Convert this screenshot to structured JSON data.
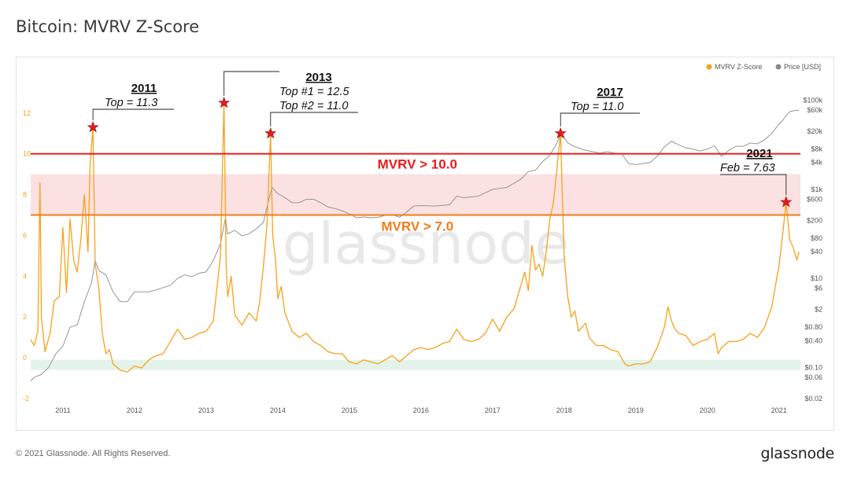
{
  "page": {
    "title": "Bitcoin: MVRV Z-Score",
    "footer_copyright": "© 2021 Glassnode. All Rights Reserved.",
    "footer_logo": "glassnode",
    "watermark": "glassnode"
  },
  "legend": [
    {
      "label": "MVRV Z-Score",
      "color": "#f7a21b"
    },
    {
      "label": "Price [USD]",
      "color": "#8a8a8a"
    }
  ],
  "colors": {
    "zscore": "#f7a21b",
    "price": "#8a8a8a",
    "red_band": "#fbe1e1",
    "green_band": "#e3f3ea",
    "red_line": "#e41e1e",
    "orange_line": "#f07d1a",
    "star": "#e41e1e"
  },
  "chart_data": {
    "type": "line",
    "title": "Bitcoin: MVRV Z-Score",
    "x_ticks": [
      "2011",
      "2012",
      "2013",
      "2014",
      "2015",
      "2016",
      "2017",
      "2018",
      "2019",
      "2020",
      "2021"
    ],
    "x_range": [
      2010.55,
      2021.3
    ],
    "left_axis": {
      "ticks": [
        "-2",
        "0",
        "2",
        "4",
        "6",
        "8",
        "10",
        "12"
      ],
      "tick_values": [
        -2,
        0,
        2,
        4,
        6,
        8,
        10,
        12
      ],
      "range": [
        -2,
        12.8
      ]
    },
    "right_axis": {
      "scale": "log",
      "ticks": [
        "$0.02",
        "$0.06",
        "$0.10",
        "$0.40",
        "$0.80",
        "$2",
        "$6",
        "$10",
        "$40",
        "$80",
        "$200",
        "$600",
        "$1k",
        "$4k",
        "$8k",
        "$20k",
        "$60k",
        "$100k"
      ],
      "tick_values": [
        0.02,
        0.06,
        0.1,
        0.4,
        0.8,
        2,
        6,
        10,
        40,
        80,
        200,
        600,
        1000,
        4000,
        8000,
        20000,
        60000,
        100000
      ],
      "range": [
        0.02,
        120000
      ]
    },
    "series": [
      {
        "name": "MVRV Z-Score",
        "points": [
          [
            2010.55,
            0.9
          ],
          [
            2010.6,
            0.6
          ],
          [
            2010.65,
            1.3
          ],
          [
            2010.68,
            8.6
          ],
          [
            2010.7,
            2.0
          ],
          [
            2010.75,
            0.3
          ],
          [
            2010.82,
            1.2
          ],
          [
            2010.88,
            2.8
          ],
          [
            2010.95,
            3.0
          ],
          [
            2011.0,
            6.4
          ],
          [
            2011.05,
            3.2
          ],
          [
            2011.1,
            6.8
          ],
          [
            2011.15,
            4.8
          ],
          [
            2011.2,
            4.2
          ],
          [
            2011.25,
            5.8
          ],
          [
            2011.3,
            8.0
          ],
          [
            2011.35,
            5.2
          ],
          [
            2011.38,
            9.5
          ],
          [
            2011.42,
            11.3
          ],
          [
            2011.45,
            4.6
          ],
          [
            2011.5,
            3.5
          ],
          [
            2011.55,
            1.2
          ],
          [
            2011.6,
            0.2
          ],
          [
            2011.65,
            0.4
          ],
          [
            2011.7,
            -0.3
          ],
          [
            2011.8,
            -0.6
          ],
          [
            2011.9,
            -0.7
          ],
          [
            2012.0,
            -0.4
          ],
          [
            2012.1,
            -0.5
          ],
          [
            2012.2,
            -0.1
          ],
          [
            2012.3,
            0.1
          ],
          [
            2012.4,
            0.2
          ],
          [
            2012.5,
            0.8
          ],
          [
            2012.6,
            1.4
          ],
          [
            2012.7,
            0.9
          ],
          [
            2012.8,
            1.0
          ],
          [
            2012.9,
            1.2
          ],
          [
            2013.0,
            1.3
          ],
          [
            2013.1,
            1.8
          ],
          [
            2013.2,
            5.0
          ],
          [
            2013.25,
            12.5
          ],
          [
            2013.28,
            4.5
          ],
          [
            2013.3,
            3.0
          ],
          [
            2013.35,
            4.0
          ],
          [
            2013.4,
            2.1
          ],
          [
            2013.5,
            1.6
          ],
          [
            2013.6,
            2.2
          ],
          [
            2013.7,
            1.8
          ],
          [
            2013.75,
            2.8
          ],
          [
            2013.8,
            4.5
          ],
          [
            2013.85,
            6.5
          ],
          [
            2013.9,
            11.0
          ],
          [
            2013.93,
            6.0
          ],
          [
            2013.97,
            4.8
          ],
          [
            2014.0,
            2.9
          ],
          [
            2014.05,
            3.5
          ],
          [
            2014.1,
            2.2
          ],
          [
            2014.2,
            1.3
          ],
          [
            2014.3,
            1.0
          ],
          [
            2014.4,
            1.2
          ],
          [
            2014.5,
            0.8
          ],
          [
            2014.6,
            0.6
          ],
          [
            2014.7,
            0.3
          ],
          [
            2014.8,
            0.2
          ],
          [
            2014.9,
            0.2
          ],
          [
            2015.0,
            -0.2
          ],
          [
            2015.1,
            -0.3
          ],
          [
            2015.2,
            -0.1
          ],
          [
            2015.3,
            -0.2
          ],
          [
            2015.4,
            -0.3
          ],
          [
            2015.5,
            -0.1
          ],
          [
            2015.6,
            0.1
          ],
          [
            2015.7,
            -0.2
          ],
          [
            2015.8,
            0.1
          ],
          [
            2015.9,
            0.4
          ],
          [
            2016.0,
            0.5
          ],
          [
            2016.1,
            0.4
          ],
          [
            2016.2,
            0.5
          ],
          [
            2016.3,
            0.7
          ],
          [
            2016.4,
            0.8
          ],
          [
            2016.5,
            1.4
          ],
          [
            2016.6,
            0.9
          ],
          [
            2016.7,
            0.8
          ],
          [
            2016.8,
            0.9
          ],
          [
            2016.9,
            1.2
          ],
          [
            2017.0,
            1.9
          ],
          [
            2017.1,
            1.3
          ],
          [
            2017.2,
            2.0
          ],
          [
            2017.3,
            2.4
          ],
          [
            2017.4,
            3.6
          ],
          [
            2017.45,
            4.2
          ],
          [
            2017.5,
            3.3
          ],
          [
            2017.55,
            5.5
          ],
          [
            2017.6,
            4.3
          ],
          [
            2017.65,
            4.6
          ],
          [
            2017.7,
            4.0
          ],
          [
            2017.75,
            5.2
          ],
          [
            2017.8,
            6.8
          ],
          [
            2017.85,
            7.6
          ],
          [
            2017.9,
            9.3
          ],
          [
            2017.95,
            11.0
          ],
          [
            2018.0,
            5.0
          ],
          [
            2018.05,
            3.0
          ],
          [
            2018.1,
            2.0
          ],
          [
            2018.15,
            2.3
          ],
          [
            2018.2,
            1.3
          ],
          [
            2018.3,
            1.7
          ],
          [
            2018.35,
            1.0
          ],
          [
            2018.45,
            0.6
          ],
          [
            2018.55,
            0.6
          ],
          [
            2018.65,
            0.4
          ],
          [
            2018.75,
            0.3
          ],
          [
            2018.85,
            -0.3
          ],
          [
            2018.9,
            -0.4
          ],
          [
            2019.0,
            -0.3
          ],
          [
            2019.1,
            -0.3
          ],
          [
            2019.2,
            -0.2
          ],
          [
            2019.3,
            0.5
          ],
          [
            2019.4,
            1.5
          ],
          [
            2019.45,
            2.5
          ],
          [
            2019.5,
            1.8
          ],
          [
            2019.55,
            1.4
          ],
          [
            2019.6,
            1.2
          ],
          [
            2019.7,
            1.1
          ],
          [
            2019.8,
            0.6
          ],
          [
            2019.9,
            0.8
          ],
          [
            2020.0,
            0.9
          ],
          [
            2020.1,
            1.2
          ],
          [
            2020.15,
            0.2
          ],
          [
            2020.2,
            0.5
          ],
          [
            2020.3,
            0.8
          ],
          [
            2020.4,
            0.8
          ],
          [
            2020.5,
            0.9
          ],
          [
            2020.6,
            1.2
          ],
          [
            2020.7,
            1.0
          ],
          [
            2020.8,
            1.5
          ],
          [
            2020.9,
            2.5
          ],
          [
            2021.0,
            4.5
          ],
          [
            2021.05,
            6.0
          ],
          [
            2021.1,
            7.63
          ],
          [
            2021.15,
            5.8
          ],
          [
            2021.2,
            5.4
          ],
          [
            2021.25,
            4.8
          ],
          [
            2021.28,
            5.2
          ]
        ]
      },
      {
        "name": "Price [USD]",
        "points": [
          [
            2010.55,
            0.05
          ],
          [
            2010.6,
            0.06
          ],
          [
            2010.7,
            0.07
          ],
          [
            2010.8,
            0.1
          ],
          [
            2010.9,
            0.2
          ],
          [
            2011.0,
            0.3
          ],
          [
            2011.1,
            0.8
          ],
          [
            2011.2,
            0.9
          ],
          [
            2011.3,
            3
          ],
          [
            2011.4,
            8
          ],
          [
            2011.45,
            25
          ],
          [
            2011.5,
            15
          ],
          [
            2011.6,
            12
          ],
          [
            2011.7,
            5
          ],
          [
            2011.8,
            3
          ],
          [
            2011.9,
            3
          ],
          [
            2012.0,
            5
          ],
          [
            2012.1,
            5
          ],
          [
            2012.2,
            5
          ],
          [
            2012.3,
            5.5
          ],
          [
            2012.5,
            7
          ],
          [
            2012.6,
            10
          ],
          [
            2012.7,
            12
          ],
          [
            2012.8,
            11
          ],
          [
            2012.9,
            13
          ],
          [
            2013.0,
            14
          ],
          [
            2013.1,
            25
          ],
          [
            2013.2,
            60
          ],
          [
            2013.27,
            230
          ],
          [
            2013.3,
            100
          ],
          [
            2013.4,
            120
          ],
          [
            2013.5,
            90
          ],
          [
            2013.6,
            100
          ],
          [
            2013.7,
            130
          ],
          [
            2013.8,
            180
          ],
          [
            2013.85,
            400
          ],
          [
            2013.92,
            1100
          ],
          [
            2014.0,
            800
          ],
          [
            2014.1,
            650
          ],
          [
            2014.2,
            500
          ],
          [
            2014.3,
            500
          ],
          [
            2014.4,
            600
          ],
          [
            2014.5,
            600
          ],
          [
            2014.6,
            500
          ],
          [
            2014.7,
            400
          ],
          [
            2014.8,
            370
          ],
          [
            2014.9,
            330
          ],
          [
            2015.0,
            280
          ],
          [
            2015.1,
            230
          ],
          [
            2015.2,
            240
          ],
          [
            2015.3,
            230
          ],
          [
            2015.4,
            235
          ],
          [
            2015.5,
            260
          ],
          [
            2015.6,
            270
          ],
          [
            2015.7,
            235
          ],
          [
            2015.8,
            310
          ],
          [
            2015.9,
            420
          ],
          [
            2016.0,
            430
          ],
          [
            2016.2,
            420
          ],
          [
            2016.4,
            450
          ],
          [
            2016.5,
            700
          ],
          [
            2016.6,
            650
          ],
          [
            2016.8,
            700
          ],
          [
            2017.0,
            1000
          ],
          [
            2017.2,
            1100
          ],
          [
            2017.4,
            1700
          ],
          [
            2017.5,
            2500
          ],
          [
            2017.6,
            2700
          ],
          [
            2017.7,
            4200
          ],
          [
            2017.8,
            5800
          ],
          [
            2017.9,
            11000
          ],
          [
            2017.96,
            19000
          ],
          [
            2018.05,
            11000
          ],
          [
            2018.15,
            9000
          ],
          [
            2018.3,
            7500
          ],
          [
            2018.4,
            7000
          ],
          [
            2018.5,
            6500
          ],
          [
            2018.6,
            7000
          ],
          [
            2018.7,
            6500
          ],
          [
            2018.8,
            6300
          ],
          [
            2018.9,
            3800
          ],
          [
            2019.0,
            3600
          ],
          [
            2019.2,
            4000
          ],
          [
            2019.3,
            5500
          ],
          [
            2019.4,
            9000
          ],
          [
            2019.5,
            12000
          ],
          [
            2019.6,
            10000
          ],
          [
            2019.7,
            8500
          ],
          [
            2019.8,
            8000
          ],
          [
            2019.9,
            7200
          ],
          [
            2020.0,
            8000
          ],
          [
            2020.1,
            9500
          ],
          [
            2020.2,
            5500
          ],
          [
            2020.3,
            7500
          ],
          [
            2020.4,
            9300
          ],
          [
            2020.5,
            9200
          ],
          [
            2020.6,
            11000
          ],
          [
            2020.7,
            10500
          ],
          [
            2020.8,
            13000
          ],
          [
            2020.9,
            18000
          ],
          [
            2021.0,
            29000
          ],
          [
            2021.05,
            35000
          ],
          [
            2021.1,
            45000
          ],
          [
            2021.15,
            55000
          ],
          [
            2021.2,
            58000
          ],
          [
            2021.28,
            60000
          ]
        ]
      }
    ],
    "bands": [
      {
        "from": 7.0,
        "to": 9.0,
        "color": "#fbe1e1"
      },
      {
        "from": -0.6,
        "to": -0.1,
        "color": "#e3f3ea"
      }
    ],
    "threshold_lines": [
      {
        "value": 10.0,
        "label": "MVRV > 10.0",
        "color": "#e41e1e"
      },
      {
        "value": 7.0,
        "label": "MVRV > 7.0",
        "color": "#f07d1a"
      }
    ],
    "annotations": [
      {
        "year_label": "2011",
        "lines": [
          "Top = 11.3"
        ],
        "points": [
          [
            2011.42,
            11.3
          ]
        ]
      },
      {
        "year_label": "2013",
        "lines": [
          "Top #1 = 12.5",
          "Top #2 = 11.0"
        ],
        "points": [
          [
            2013.25,
            12.5
          ],
          [
            2013.9,
            11.0
          ]
        ]
      },
      {
        "year_label": "2017",
        "lines": [
          "Top = 11.0"
        ],
        "points": [
          [
            2017.95,
            11.0
          ]
        ]
      },
      {
        "year_label": "2021",
        "lines": [
          "Feb = 7.63"
        ],
        "points": [
          [
            2021.1,
            7.63
          ]
        ]
      }
    ]
  }
}
